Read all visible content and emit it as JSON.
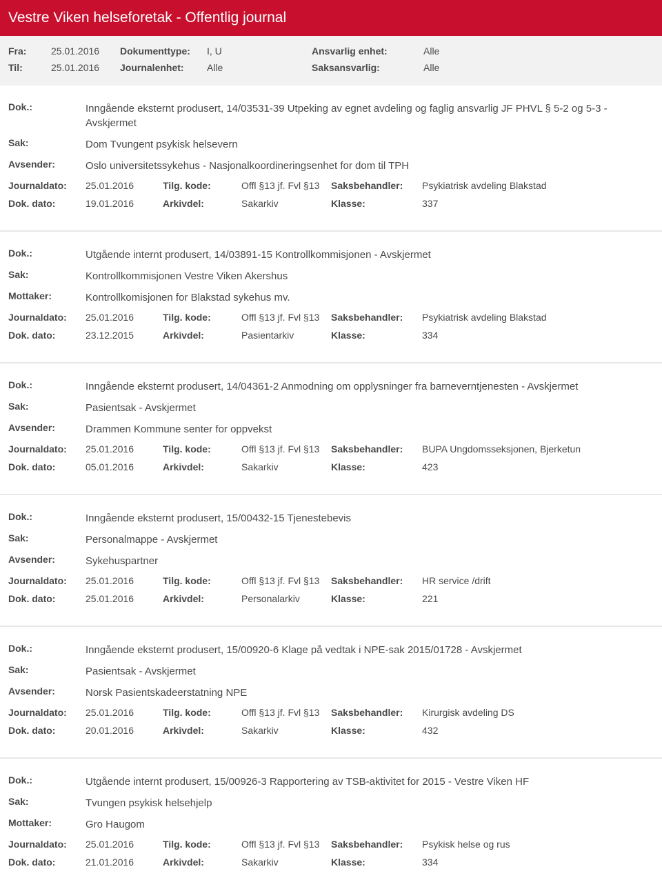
{
  "header": {
    "title": "Vestre Viken helseforetak - Offentlig journal"
  },
  "filters": {
    "fra_label": "Fra:",
    "fra_value": "25.01.2016",
    "til_label": "Til:",
    "til_value": "25.01.2016",
    "dokumenttype_label": "Dokumenttype:",
    "dokumenttype_value": "I, U",
    "journalenhet_label": "Journalenhet:",
    "journalenhet_value": "Alle",
    "ansvarlig_label": "Ansvarlig enhet:",
    "ansvarlig_value": "Alle",
    "saksansvarlig_label": "Saksansvarlig:",
    "saksansvarlig_value": "Alle"
  },
  "labels": {
    "dok": "Dok.:",
    "sak": "Sak:",
    "avsender": "Avsender:",
    "mottaker": "Mottaker:",
    "journaldato": "Journaldato:",
    "dokdato": "Dok. dato:",
    "tilgkode": "Tilg. kode:",
    "arkivdel": "Arkivdel:",
    "saksbehandler": "Saksbehandler:",
    "klasse": "Klasse:"
  },
  "entries": [
    {
      "dok": "Inngående eksternt produsert, 14/03531-39 Utpeking av egnet avdeling og faglig ansvarlig JF PHVL § 5-2 og 5-3 - Avskjermet",
      "sak": "Dom  Tvungent psykisk helsevern",
      "party_label": "Avsender:",
      "party": "Oslo universitetssykehus - Nasjonalkoordineringsenhet for dom til TPH",
      "journaldato": "25.01.2016",
      "dokdato": "19.01.2016",
      "tilgkode": "Offl §13 jf. Fvl §13",
      "arkivdel": "Sakarkiv",
      "saksbehandler": "Psykiatrisk avdeling Blakstad",
      "klasse": "337"
    },
    {
      "dok": "Utgående internt produsert, 14/03891-15 Kontrollkommisjonen - Avskjermet",
      "sak": "Kontrollkommisjonen Vestre Viken Akershus",
      "party_label": "Mottaker:",
      "party": "Kontrollkomisjonen for Blakstad sykehus mv.",
      "journaldato": "25.01.2016",
      "dokdato": "23.12.2015",
      "tilgkode": "Offl §13 jf. Fvl §13",
      "arkivdel": "Pasientarkiv",
      "saksbehandler": "Psykiatrisk avdeling Blakstad",
      "klasse": "334"
    },
    {
      "dok": "Inngående eksternt produsert, 14/04361-2 Anmodning om opplysninger fra barneverntjenesten - Avskjermet",
      "sak": "Pasientsak - Avskjermet",
      "party_label": "Avsender:",
      "party": "Drammen Kommune  senter for oppvekst",
      "journaldato": "25.01.2016",
      "dokdato": "05.01.2016",
      "tilgkode": "Offl §13 jf. Fvl §13",
      "arkivdel": "Sakarkiv",
      "saksbehandler": "BUPA Ungdomsseksjonen, Bjerketun",
      "klasse": "423"
    },
    {
      "dok": "Inngående eksternt produsert, 15/00432-15 Tjenestebevis",
      "sak": "Personalmappe - Avskjermet",
      "party_label": "Avsender:",
      "party": "Sykehuspartner",
      "journaldato": "25.01.2016",
      "dokdato": "25.01.2016",
      "tilgkode": "Offl §13 jf. Fvl §13",
      "arkivdel": "Personalarkiv",
      "saksbehandler": "HR service /drift",
      "klasse": "221"
    },
    {
      "dok": "Inngående eksternt produsert, 15/00920-6 Klage på vedtak i NPE-sak 2015/01728 - Avskjermet",
      "sak": "Pasientsak - Avskjermet",
      "party_label": "Avsender:",
      "party": "Norsk Pasientskadeerstatning NPE",
      "journaldato": "25.01.2016",
      "dokdato": "20.01.2016",
      "tilgkode": "Offl §13 jf. Fvl §13",
      "arkivdel": "Sakarkiv",
      "saksbehandler": "Kirurgisk avdeling DS",
      "klasse": "432"
    },
    {
      "dok": "Utgående internt produsert, 15/00926-3 Rapportering av TSB-aktivitet for 2015 - Vestre Viken HF",
      "sak": "Tvungen psykisk helsehjelp",
      "party_label": "Mottaker:",
      "party": "Gro Haugom",
      "journaldato": "25.01.2016",
      "dokdato": "21.01.2016",
      "tilgkode": "Offl §13 jf. Fvl §13",
      "arkivdel": "Sakarkiv",
      "saksbehandler": "Psykisk helse og rus",
      "klasse": "334"
    }
  ],
  "styling": {
    "header_bg": "#c8102e",
    "header_fg": "#ffffff",
    "filter_bg": "#f2f2f2",
    "text_color": "#4a4a4a",
    "divider_color": "#e8e8e8"
  }
}
